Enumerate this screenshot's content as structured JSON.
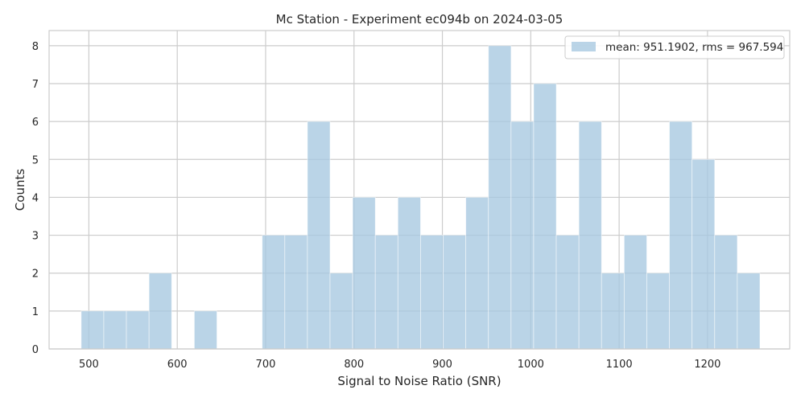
{
  "chart_data": {
    "type": "bar",
    "subtype": "histogram",
    "title": "Mc Station - Experiment ec094b on 2024-03-05",
    "xlabel": "Signal to Noise Ratio (SNR)",
    "ylabel": "Counts",
    "xlim": [
      455,
      1293
    ],
    "ylim": [
      0,
      8.4
    ],
    "xticks": [
      500,
      600,
      700,
      800,
      900,
      1000,
      1100,
      1200
    ],
    "yticks": [
      0,
      1,
      2,
      3,
      4,
      5,
      6,
      7,
      8
    ],
    "grid": true,
    "legend_position": "top-right",
    "bar_color": "#a6c8e0",
    "series": [
      {
        "name": "mean: 951.1902, rms = 967.594",
        "bins": [
          {
            "x0": 491.3,
            "x1": 516.9,
            "count": 1
          },
          {
            "x0": 516.9,
            "x1": 542.5,
            "count": 1
          },
          {
            "x0": 542.5,
            "x1": 568.1,
            "count": 1
          },
          {
            "x0": 568.1,
            "x1": 593.7,
            "count": 2
          },
          {
            "x0": 593.7,
            "x1": 619.3,
            "count": 0
          },
          {
            "x0": 619.3,
            "x1": 644.9,
            "count": 1
          },
          {
            "x0": 644.9,
            "x1": 670.5,
            "count": 0
          },
          {
            "x0": 670.5,
            "x1": 696.1,
            "count": 0
          },
          {
            "x0": 696.1,
            "x1": 721.7,
            "count": 3
          },
          {
            "x0": 721.7,
            "x1": 747.3,
            "count": 3
          },
          {
            "x0": 747.3,
            "x1": 772.9,
            "count": 6
          },
          {
            "x0": 772.9,
            "x1": 798.5,
            "count": 2
          },
          {
            "x0": 798.5,
            "x1": 824.1,
            "count": 4
          },
          {
            "x0": 824.1,
            "x1": 849.7,
            "count": 3
          },
          {
            "x0": 849.7,
            "x1": 875.3,
            "count": 4
          },
          {
            "x0": 875.3,
            "x1": 900.9,
            "count": 3
          },
          {
            "x0": 900.9,
            "x1": 926.5,
            "count": 3
          },
          {
            "x0": 926.5,
            "x1": 952.1,
            "count": 4
          },
          {
            "x0": 952.1,
            "x1": 977.7,
            "count": 8
          },
          {
            "x0": 977.7,
            "x1": 1003.3,
            "count": 6
          },
          {
            "x0": 1003.3,
            "x1": 1028.9,
            "count": 7
          },
          {
            "x0": 1028.9,
            "x1": 1054.5,
            "count": 3
          },
          {
            "x0": 1054.5,
            "x1": 1080.1,
            "count": 6
          },
          {
            "x0": 1080.1,
            "x1": 1105.7,
            "count": 2
          },
          {
            "x0": 1105.7,
            "x1": 1131.3,
            "count": 3
          },
          {
            "x0": 1131.3,
            "x1": 1156.9,
            "count": 2
          },
          {
            "x0": 1156.9,
            "x1": 1182.5,
            "count": 6
          },
          {
            "x0": 1182.5,
            "x1": 1208.1,
            "count": 5
          },
          {
            "x0": 1208.1,
            "x1": 1233.7,
            "count": 3
          },
          {
            "x0": 1233.7,
            "x1": 1259.3,
            "count": 2
          }
        ]
      }
    ]
  }
}
